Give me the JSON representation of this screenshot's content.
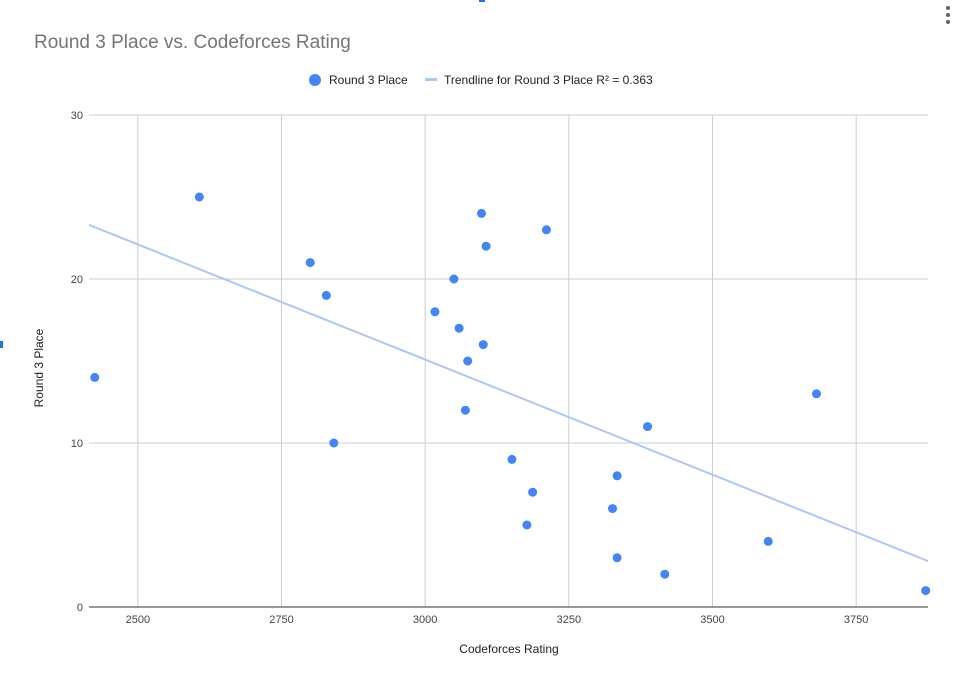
{
  "chart_data": {
    "type": "scatter",
    "title": "Round 3 Place vs. Codeforces Rating",
    "xlabel": "Codeforces Rating",
    "ylabel": "Round 3 Place",
    "xlim": [
      2415,
      3875
    ],
    "ylim": [
      0,
      30
    ],
    "x_ticks": [
      "2500",
      "2750",
      "3000",
      "3250",
      "3500",
      "3750"
    ],
    "y_ticks": [
      "0",
      "10",
      "20",
      "30"
    ],
    "grid": true,
    "legend_position": "top",
    "series": [
      {
        "name": "Round 3 Place",
        "color": "#4285f4",
        "points": [
          {
            "x": 2425,
            "y": 14
          },
          {
            "x": 2607,
            "y": 25
          },
          {
            "x": 2800,
            "y": 21
          },
          {
            "x": 2828,
            "y": 19
          },
          {
            "x": 2841,
            "y": 10
          },
          {
            "x": 3017,
            "y": 18
          },
          {
            "x": 3050,
            "y": 20
          },
          {
            "x": 3059,
            "y": 17
          },
          {
            "x": 3070,
            "y": 12
          },
          {
            "x": 3074,
            "y": 15
          },
          {
            "x": 3098,
            "y": 24
          },
          {
            "x": 3101,
            "y": 16
          },
          {
            "x": 3106,
            "y": 22
          },
          {
            "x": 3151,
            "y": 9
          },
          {
            "x": 3177,
            "y": 5
          },
          {
            "x": 3187,
            "y": 7
          },
          {
            "x": 3211,
            "y": 23
          },
          {
            "x": 3326,
            "y": 6
          },
          {
            "x": 3334,
            "y": 8
          },
          {
            "x": 3334,
            "y": 3
          },
          {
            "x": 3387,
            "y": 11
          },
          {
            "x": 3417,
            "y": 2
          },
          {
            "x": 3597,
            "y": 4
          },
          {
            "x": 3681,
            "y": 13
          },
          {
            "x": 3871,
            "y": 1
          }
        ]
      }
    ],
    "trendline": {
      "name": "Trendline for Round 3 Place R² = 0.363",
      "color": "#a8c7fa",
      "x": [
        2415,
        3875
      ],
      "y": [
        23.3,
        2.8
      ]
    }
  }
}
